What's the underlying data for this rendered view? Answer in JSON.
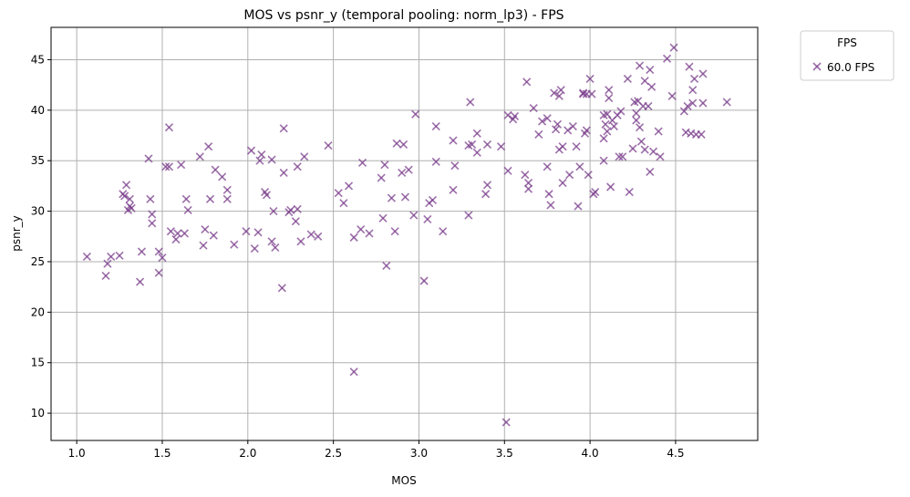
{
  "chart_data": {
    "type": "scatter",
    "title": "MOS vs psnr_y (temporal pooling: norm_lp3) - FPS",
    "xlabel": "MOS",
    "ylabel": "psnr_y",
    "xlim": [
      0.85,
      4.98
    ],
    "ylim": [
      7.3,
      48.2
    ],
    "xticks": [
      1.0,
      1.5,
      2.0,
      2.5,
      3.0,
      3.5,
      4.0,
      4.5
    ],
    "xtick_labels": [
      "1.0",
      "1.5",
      "2.0",
      "2.5",
      "3.0",
      "3.5",
      "4.0",
      "4.5"
    ],
    "yticks": [
      10,
      15,
      20,
      25,
      30,
      35,
      40,
      45
    ],
    "ytick_labels": [
      "10",
      "15",
      "20",
      "25",
      "30",
      "35",
      "40",
      "45"
    ],
    "grid": true,
    "legend": {
      "title": "FPS",
      "placement": "outside-top-right"
    },
    "marker": "x",
    "color": "#7b3f8c",
    "series": [
      {
        "name": "60.0 FPS",
        "points": [
          [
            1.06,
            25.5
          ],
          [
            1.17,
            23.6
          ],
          [
            1.18,
            24.8
          ],
          [
            1.2,
            25.5
          ],
          [
            1.25,
            25.6
          ],
          [
            1.27,
            31.7
          ],
          [
            1.28,
            31.5
          ],
          [
            1.29,
            32.6
          ],
          [
            1.3,
            30.1
          ],
          [
            1.31,
            31.2
          ],
          [
            1.31,
            30.5
          ],
          [
            1.32,
            30.3
          ],
          [
            1.37,
            23.0
          ],
          [
            1.38,
            26.0
          ],
          [
            1.42,
            35.2
          ],
          [
            1.43,
            31.2
          ],
          [
            1.44,
            29.7
          ],
          [
            1.44,
            28.8
          ],
          [
            1.48,
            26.0
          ],
          [
            1.48,
            23.9
          ],
          [
            1.5,
            25.4
          ],
          [
            1.52,
            34.4
          ],
          [
            1.54,
            38.3
          ],
          [
            1.54,
            34.4
          ],
          [
            1.55,
            28.0
          ],
          [
            1.58,
            27.2
          ],
          [
            1.59,
            27.8
          ],
          [
            1.61,
            34.6
          ],
          [
            1.63,
            27.8
          ],
          [
            1.64,
            31.2
          ],
          [
            1.65,
            30.1
          ],
          [
            1.72,
            35.4
          ],
          [
            1.74,
            26.6
          ],
          [
            1.75,
            28.2
          ],
          [
            1.77,
            36.4
          ],
          [
            1.78,
            31.2
          ],
          [
            1.8,
            27.6
          ],
          [
            1.81,
            34.1
          ],
          [
            1.85,
            33.4
          ],
          [
            1.88,
            31.2
          ],
          [
            1.88,
            32.1
          ],
          [
            1.92,
            26.7
          ],
          [
            1.99,
            28.0
          ],
          [
            2.02,
            36.0
          ],
          [
            2.04,
            26.3
          ],
          [
            2.06,
            27.9
          ],
          [
            2.07,
            35.0
          ],
          [
            2.08,
            35.6
          ],
          [
            2.1,
            31.9
          ],
          [
            2.11,
            31.6
          ],
          [
            2.14,
            35.1
          ],
          [
            2.14,
            27.0
          ],
          [
            2.15,
            30.0
          ],
          [
            2.16,
            26.4
          ],
          [
            2.2,
            22.4
          ],
          [
            2.21,
            38.2
          ],
          [
            2.21,
            33.8
          ],
          [
            2.24,
            29.9
          ],
          [
            2.25,
            30.1
          ],
          [
            2.28,
            29.0
          ],
          [
            2.29,
            30.2
          ],
          [
            2.29,
            34.4
          ],
          [
            2.31,
            27.0
          ],
          [
            2.33,
            35.4
          ],
          [
            2.37,
            27.7
          ],
          [
            2.41,
            27.5
          ],
          [
            2.47,
            36.5
          ],
          [
            2.53,
            31.8
          ],
          [
            2.56,
            30.8
          ],
          [
            2.59,
            32.5
          ],
          [
            2.62,
            27.4
          ],
          [
            2.62,
            14.1
          ],
          [
            2.66,
            28.2
          ],
          [
            2.67,
            34.8
          ],
          [
            2.71,
            27.8
          ],
          [
            2.78,
            33.3
          ],
          [
            2.79,
            29.3
          ],
          [
            2.8,
            34.6
          ],
          [
            2.81,
            24.6
          ],
          [
            2.84,
            31.3
          ],
          [
            2.86,
            28.0
          ],
          [
            2.87,
            36.7
          ],
          [
            2.9,
            33.8
          ],
          [
            2.91,
            36.6
          ],
          [
            2.92,
            31.4
          ],
          [
            2.94,
            34.1
          ],
          [
            2.97,
            29.6
          ],
          [
            2.98,
            39.6
          ],
          [
            3.03,
            23.1
          ],
          [
            3.05,
            29.2
          ],
          [
            3.06,
            30.8
          ],
          [
            3.08,
            31.1
          ],
          [
            3.1,
            38.4
          ],
          [
            3.1,
            34.9
          ],
          [
            3.14,
            28.0
          ],
          [
            3.2,
            32.1
          ],
          [
            3.2,
            37.0
          ],
          [
            3.21,
            34.5
          ],
          [
            3.29,
            29.6
          ],
          [
            3.29,
            36.5
          ],
          [
            3.3,
            40.8
          ],
          [
            3.31,
            36.6
          ],
          [
            3.34,
            35.8
          ],
          [
            3.34,
            37.7
          ],
          [
            3.39,
            31.7
          ],
          [
            3.4,
            36.6
          ],
          [
            3.4,
            32.6
          ],
          [
            3.48,
            36.4
          ],
          [
            3.51,
            9.1
          ],
          [
            3.52,
            39.5
          ],
          [
            3.52,
            34.0
          ],
          [
            3.55,
            39.1
          ],
          [
            3.56,
            39.4
          ],
          [
            3.62,
            33.6
          ],
          [
            3.63,
            42.8
          ],
          [
            3.64,
            32.2
          ],
          [
            3.64,
            32.8
          ],
          [
            3.67,
            40.2
          ],
          [
            3.7,
            37.6
          ],
          [
            3.72,
            38.9
          ],
          [
            3.75,
            34.4
          ],
          [
            3.75,
            39.2
          ],
          [
            3.76,
            31.7
          ],
          [
            3.77,
            30.6
          ],
          [
            3.79,
            41.7
          ],
          [
            3.8,
            38.1
          ],
          [
            3.81,
            38.6
          ],
          [
            3.82,
            36.1
          ],
          [
            3.82,
            41.4
          ],
          [
            3.83,
            42.0
          ],
          [
            3.84,
            32.8
          ],
          [
            3.84,
            36.4
          ],
          [
            3.87,
            38.0
          ],
          [
            3.88,
            33.6
          ],
          [
            3.9,
            38.4
          ],
          [
            3.92,
            36.4
          ],
          [
            3.93,
            30.5
          ],
          [
            3.94,
            34.4
          ],
          [
            3.96,
            41.7
          ],
          [
            3.96,
            41.6
          ],
          [
            3.97,
            37.7
          ],
          [
            3.98,
            38.0
          ],
          [
            3.98,
            41.6
          ],
          [
            3.99,
            33.6
          ],
          [
            4.0,
            43.1
          ],
          [
            4.01,
            41.6
          ],
          [
            4.02,
            31.7
          ],
          [
            4.03,
            31.9
          ],
          [
            4.08,
            37.2
          ],
          [
            4.08,
            39.5
          ],
          [
            4.08,
            35.0
          ],
          [
            4.09,
            38.6
          ],
          [
            4.1,
            39.6
          ],
          [
            4.1,
            37.9
          ],
          [
            4.11,
            42.0
          ],
          [
            4.11,
            41.2
          ],
          [
            4.12,
            32.4
          ],
          [
            4.13,
            39.0
          ],
          [
            4.14,
            38.4
          ],
          [
            4.16,
            39.5
          ],
          [
            4.17,
            35.4
          ],
          [
            4.18,
            39.9
          ],
          [
            4.19,
            35.4
          ],
          [
            4.22,
            43.1
          ],
          [
            4.23,
            31.9
          ],
          [
            4.25,
            36.2
          ],
          [
            4.26,
            40.8
          ],
          [
            4.27,
            39.7
          ],
          [
            4.27,
            39.0
          ],
          [
            4.28,
            40.9
          ],
          [
            4.29,
            38.3
          ],
          [
            4.29,
            44.4
          ],
          [
            4.3,
            36.9
          ],
          [
            4.31,
            40.4
          ],
          [
            4.32,
            36.1
          ],
          [
            4.32,
            42.9
          ],
          [
            4.34,
            40.4
          ],
          [
            4.35,
            33.9
          ],
          [
            4.35,
            44.0
          ],
          [
            4.36,
            42.3
          ],
          [
            4.37,
            35.9
          ],
          [
            4.4,
            37.9
          ],
          [
            4.41,
            35.4
          ],
          [
            4.45,
            45.1
          ],
          [
            4.48,
            41.4
          ],
          [
            4.49,
            46.2
          ],
          [
            4.55,
            39.9
          ],
          [
            4.56,
            37.8
          ],
          [
            4.57,
            40.4
          ],
          [
            4.58,
            44.3
          ],
          [
            4.59,
            37.7
          ],
          [
            4.6,
            40.7
          ],
          [
            4.6,
            42.0
          ],
          [
            4.61,
            43.1
          ],
          [
            4.62,
            37.6
          ],
          [
            4.65,
            37.6
          ],
          [
            4.66,
            43.6
          ],
          [
            4.66,
            40.7
          ],
          [
            4.8,
            40.8
          ]
        ]
      }
    ]
  }
}
